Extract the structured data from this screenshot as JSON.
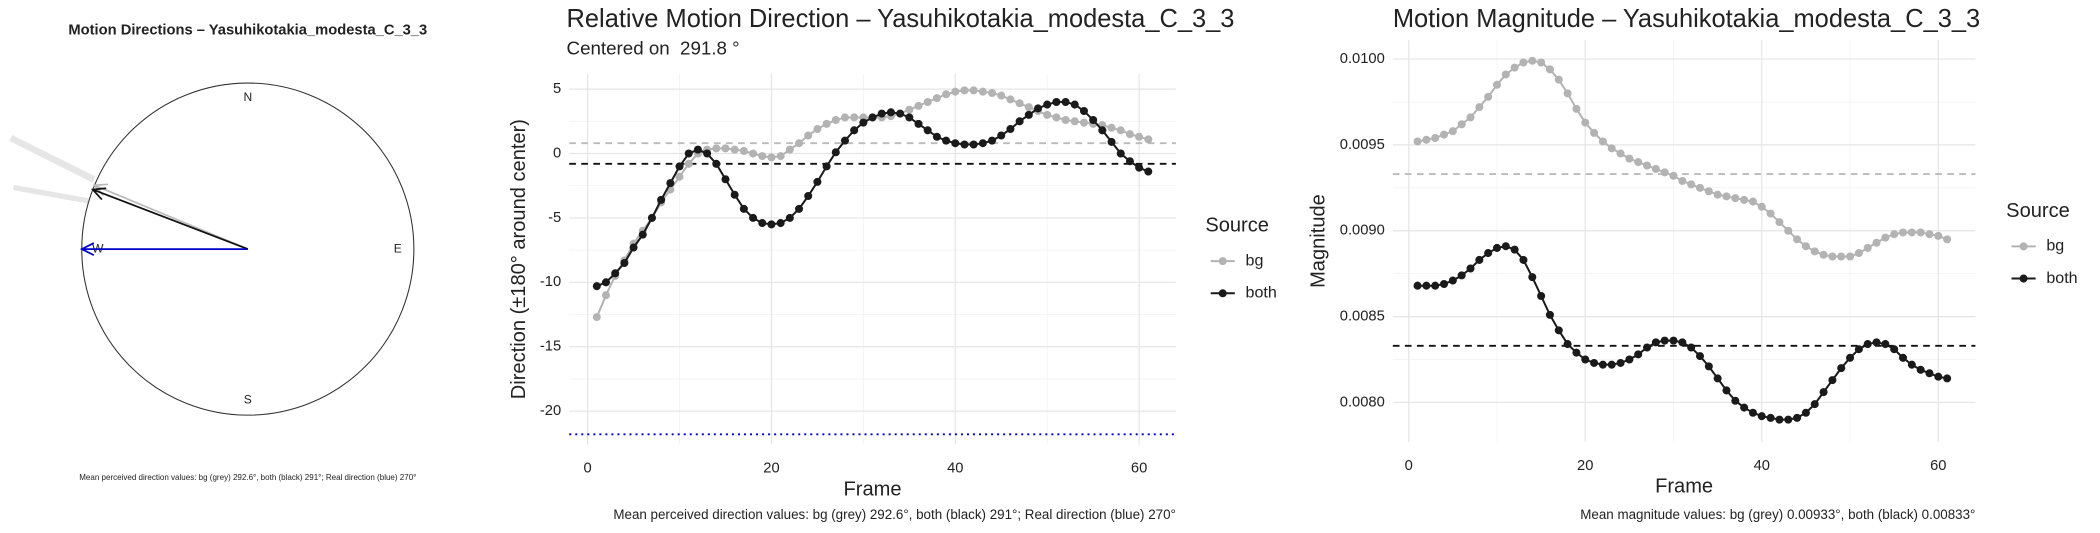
{
  "chart_data": [
    {
      "type": "compass",
      "title": "Motion Directions – Yasuhikotakia_modesta_C_3_3",
      "cardinal_labels": {
        "N": "N",
        "E": "E",
        "S": "S",
        "W": "W"
      },
      "arrows": [
        {
          "color": "#bbbbbb",
          "value": 292.6
        },
        {
          "color": "#111111",
          "value": 291
        },
        {
          "color": "#0000cc",
          "value": 270
        }
      ],
      "caption": "Mean perceived direction values: bg (grey) 292.6°, both (black) 291°; Real direction (blue) 270°"
    },
    {
      "type": "line",
      "title": "Relative Motion Direction – Yasuhikotakia_modesta_C_3_3",
      "subtitle": "Centered on  291.8 °",
      "x_label": "Frame",
      "y_label": "Direction (±180° around center)",
      "legend_title": "Source",
      "x": [
        1,
        2,
        3,
        4,
        5,
        6,
        7,
        8,
        9,
        10,
        11,
        12,
        13,
        14,
        15,
        16,
        17,
        18,
        19,
        20,
        21,
        22,
        23,
        24,
        25,
        26,
        27,
        28,
        29,
        30,
        31,
        32,
        33,
        34,
        35,
        36,
        37,
        38,
        39,
        40,
        41,
        42,
        43,
        44,
        45,
        46,
        47,
        48,
        49,
        50,
        51,
        52,
        53,
        54,
        55,
        56,
        57,
        58,
        59,
        60,
        61
      ],
      "series": [
        {
          "name": "bg",
          "color": "#b3b3b3",
          "values": [
            -12.7,
            -11,
            -9.5,
            -8.3,
            -7,
            -6,
            -5,
            -3.8,
            -2.8,
            -1.8,
            -0.8,
            0,
            0.3,
            0.4,
            0.4,
            0.3,
            0.2,
            0,
            -0.2,
            -0.3,
            -0.2,
            0.3,
            0.8,
            1.4,
            1.9,
            2.3,
            2.6,
            2.8,
            2.8,
            2.8,
            2.8,
            2.8,
            2.9,
            3.1,
            3.4,
            3.7,
            4.0,
            4.3,
            4.6,
            4.8,
            4.9,
            4.9,
            4.8,
            4.7,
            4.5,
            4.2,
            3.9,
            3.6,
            3.3,
            3.0,
            2.8,
            2.6,
            2.5,
            2.4,
            2.3,
            2.2,
            2.0,
            1.8,
            1.5,
            1.3,
            1.1
          ]
        },
        {
          "name": "both",
          "color": "#1a1a1a",
          "values": [
            -10.3,
            -10,
            -9.3,
            -8.5,
            -7.3,
            -6.3,
            -5,
            -3.6,
            -2.3,
            -1,
            0,
            0.3,
            0,
            -0.8,
            -2,
            -3.2,
            -4.3,
            -5,
            -5.4,
            -5.5,
            -5.4,
            -5,
            -4.3,
            -3.3,
            -2.2,
            -1,
            0.1,
            1,
            1.8,
            2.4,
            2.8,
            3.1,
            3.2,
            3.1,
            2.8,
            2.3,
            1.8,
            1.3,
            1.0,
            0.8,
            0.7,
            0.7,
            0.8,
            1.0,
            1.4,
            1.9,
            2.5,
            3.0,
            3.5,
            3.8,
            4.0,
            4.0,
            3.8,
            3.3,
            2.6,
            1.8,
            0.9,
            0,
            -0.6,
            -1.1,
            -1.4
          ]
        }
      ],
      "reference_lines": [
        {
          "value": 0.8,
          "color": "#bbbbbb",
          "style": "dashed"
        },
        {
          "value": -0.8,
          "color": "#111111",
          "style": "dashed"
        },
        {
          "value": -21.8,
          "color": "#0000cc",
          "style": "dotted"
        }
      ],
      "xlim": [
        -2,
        64
      ],
      "ylim": [
        -22.6,
        6.2
      ],
      "xticks": [
        0,
        20,
        40,
        60
      ],
      "yticks": [
        5,
        0,
        -5,
        -10,
        -15,
        -20
      ],
      "grid": true,
      "caption": "Mean perceived direction values: bg (grey) 292.6°, both (black) 291°; Real direction (blue) 270°"
    },
    {
      "type": "line",
      "title": "Motion Magnitude – Yasuhikotakia_modesta_C_3_3",
      "x_label": "Frame",
      "y_label": "Magnitude",
      "legend_title": "Source",
      "x": [
        1,
        2,
        3,
        4,
        5,
        6,
        7,
        8,
        9,
        10,
        11,
        12,
        13,
        14,
        15,
        16,
        17,
        18,
        19,
        20,
        21,
        22,
        23,
        24,
        25,
        26,
        27,
        28,
        29,
        30,
        31,
        32,
        33,
        34,
        35,
        36,
        37,
        38,
        39,
        40,
        41,
        42,
        43,
        44,
        45,
        46,
        47,
        48,
        49,
        50,
        51,
        52,
        53,
        54,
        55,
        56,
        57,
        58,
        59,
        60,
        61
      ],
      "series": [
        {
          "name": "bg",
          "color": "#b3b3b3",
          "values": [
            0.00952,
            0.00953,
            0.00954,
            0.00956,
            0.00958,
            0.00962,
            0.00966,
            0.00972,
            0.00978,
            0.00985,
            0.00991,
            0.00995,
            0.00998,
            0.00999,
            0.00998,
            0.00994,
            0.00988,
            0.0098,
            0.00971,
            0.00963,
            0.00957,
            0.00952,
            0.00948,
            0.00945,
            0.00942,
            0.0094,
            0.00938,
            0.00936,
            0.00934,
            0.00932,
            0.00929,
            0.00927,
            0.00925,
            0.00923,
            0.00921,
            0.0092,
            0.00919,
            0.00918,
            0.00917,
            0.00914,
            0.0091,
            0.00905,
            0.009,
            0.00895,
            0.00891,
            0.00888,
            0.00886,
            0.00885,
            0.00885,
            0.00885,
            0.00887,
            0.0089,
            0.00893,
            0.00896,
            0.00898,
            0.00899,
            0.00899,
            0.00899,
            0.00898,
            0.00897,
            0.00895
          ]
        },
        {
          "name": "both",
          "color": "#1a1a1a",
          "values": [
            0.00868,
            0.00868,
            0.00868,
            0.00869,
            0.00871,
            0.00874,
            0.00878,
            0.00883,
            0.00887,
            0.0089,
            0.00891,
            0.00889,
            0.00883,
            0.00873,
            0.00862,
            0.00851,
            0.00842,
            0.00834,
            0.00829,
            0.00825,
            0.00823,
            0.00822,
            0.00822,
            0.00823,
            0.00825,
            0.00828,
            0.00832,
            0.00835,
            0.00836,
            0.00836,
            0.00835,
            0.00832,
            0.00827,
            0.00821,
            0.00814,
            0.00807,
            0.00801,
            0.00797,
            0.00794,
            0.00792,
            0.00791,
            0.0079,
            0.0079,
            0.00791,
            0.00794,
            0.00799,
            0.00806,
            0.00813,
            0.0082,
            0.00826,
            0.00831,
            0.00834,
            0.00835,
            0.00834,
            0.00831,
            0.00826,
            0.00822,
            0.00819,
            0.00817,
            0.00815,
            0.00814
          ]
        }
      ],
      "reference_lines": [
        {
          "value": 0.00933,
          "color": "#bbbbbb",
          "style": "dashed"
        },
        {
          "value": 0.00833,
          "color": "#111111",
          "style": "dashed"
        }
      ],
      "xlim": [
        -1.8,
        64.2
      ],
      "ylim": [
        0.00777,
        0.01011
      ],
      "xticks": [
        0,
        20,
        40,
        60
      ],
      "yticks": [
        {
          "value": 0.01,
          "label": "0.0100"
        },
        {
          "value": 0.0095,
          "label": "0.0095"
        },
        {
          "value": 0.009,
          "label": "0.0090"
        },
        {
          "value": 0.0085,
          "label": "0.0085"
        },
        {
          "value": 0.008,
          "label": "0.0080"
        }
      ],
      "grid": true,
      "caption": "Mean magnitude values: bg (grey) 0.00933°, both (black) 0.00833°"
    }
  ]
}
